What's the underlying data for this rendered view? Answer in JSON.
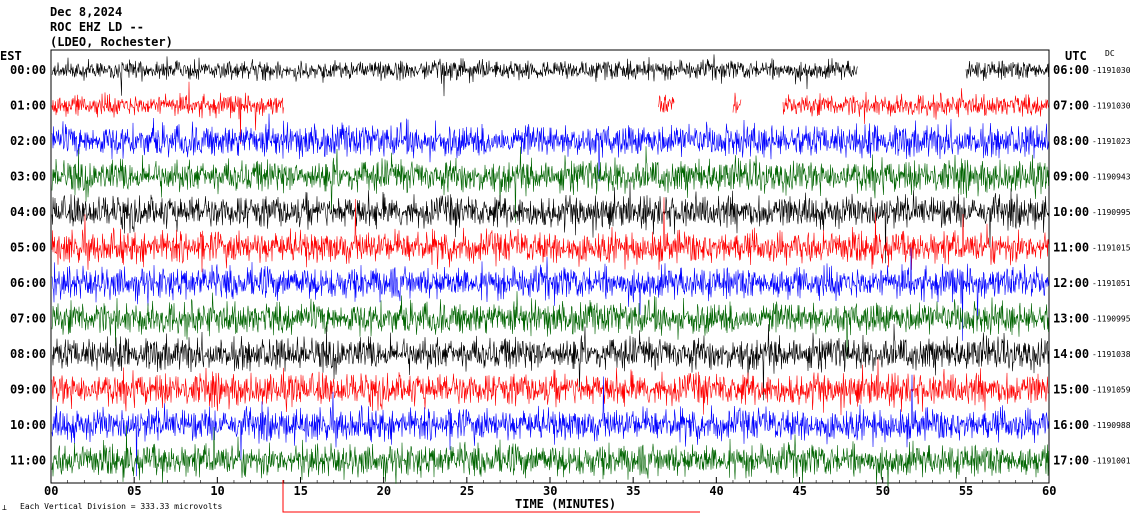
{
  "header": {
    "date": "Dec 8,2024",
    "station": "ROC EHZ LD --",
    "location": "(LDEO, Rochester)"
  },
  "left_axis_title": "EST",
  "right_axis_title": "UTC",
  "dc_label": "DC",
  "footer_note": "Each Vertical Division = 333.33 microvolts",
  "colors": {
    "black": "#000000",
    "red": "#ff0000",
    "blue": "#0000ff",
    "green": "#006400"
  },
  "chart_data": {
    "type": "line",
    "xlabel": "TIME (MINUTES)",
    "xlim": [
      0,
      60
    ],
    "x_ticks": [
      0,
      5,
      10,
      15,
      20,
      25,
      30,
      35,
      40,
      45,
      50,
      55,
      60
    ],
    "x_tick_labels": [
      "00",
      "05",
      "10",
      "15",
      "20",
      "25",
      "30",
      "35",
      "40",
      "45",
      "50",
      "55",
      "60"
    ],
    "traces": [
      {
        "est": "00:00",
        "utc": "06:00",
        "dc": "-1191030",
        "color": "black",
        "gaps": [
          [
            48.5,
            55
          ]
        ]
      },
      {
        "est": "01:00",
        "utc": "07:00",
        "dc": "-1191030",
        "color": "red",
        "gaps": [
          [
            14,
            36.5
          ],
          [
            37.5,
            41
          ],
          [
            41.5,
            44
          ]
        ]
      },
      {
        "est": "02:00",
        "utc": "08:00",
        "dc": "-1191023",
        "color": "blue",
        "gaps": []
      },
      {
        "est": "03:00",
        "utc": "09:00",
        "dc": "-1190943",
        "color": "green",
        "gaps": []
      },
      {
        "est": "04:00",
        "utc": "10:00",
        "dc": "-1190995",
        "color": "black",
        "gaps": []
      },
      {
        "est": "05:00",
        "utc": "11:00",
        "dc": "-1191015",
        "color": "red",
        "gaps": []
      },
      {
        "est": "06:00",
        "utc": "12:00",
        "dc": "-1191051",
        "color": "blue",
        "gaps": []
      },
      {
        "est": "07:00",
        "utc": "13:00",
        "dc": "-1190995",
        "color": "green",
        "gaps": []
      },
      {
        "est": "08:00",
        "utc": "14:00",
        "dc": "-1191038",
        "color": "black",
        "gaps": []
      },
      {
        "est": "09:00",
        "utc": "15:00",
        "dc": "-1191059",
        "color": "red",
        "gaps": []
      },
      {
        "est": "10:00",
        "utc": "16:00",
        "dc": "-1190988",
        "color": "blue",
        "gaps": []
      },
      {
        "est": "11:00",
        "utc": "17:00",
        "dc": "-1191001",
        "color": "green",
        "gaps": []
      }
    ]
  }
}
